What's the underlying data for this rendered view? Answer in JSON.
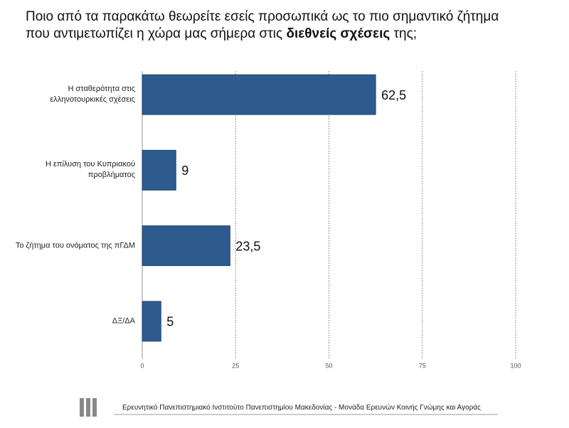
{
  "chart_data": {
    "type": "hbar",
    "title": [
      {
        "text": "Ποιο από τα παρακάτω θεωρείτε εσείς προσωπικά ως το πιο σημαντικό ζήτημα που αντιμετωπίζει η χώρα μας σήμερα στις ",
        "bold": false
      },
      {
        "text": "διεθνείς σχέσεις",
        "bold": true
      },
      {
        "text": " της;",
        "bold": false
      }
    ],
    "categories": [
      "Η σταθερότητα στις ελληνοτουρκικές σχέσεις",
      "Η επίλυση του Κυπριακού προβλήματος",
      "Το ζήτημα του ονόματος της πΓΔΜ",
      "ΔΞ/ΔΑ"
    ],
    "values": [
      62.5,
      9,
      23.5,
      5
    ],
    "value_labels": [
      "62,5",
      "9",
      "23,5",
      "5"
    ],
    "color": "#2e5b8e",
    "xlim": [
      0,
      100
    ],
    "xticks": [
      0,
      25,
      50,
      75,
      100
    ],
    "grid": true,
    "footer": "Ερευνητικό Πανεπιστημιακό Ινστιτούτο Πανεπιστημίου Μακεδονίας - Μονάδα Ερευνών Κοινής Γνώμης και Αγοράς"
  }
}
